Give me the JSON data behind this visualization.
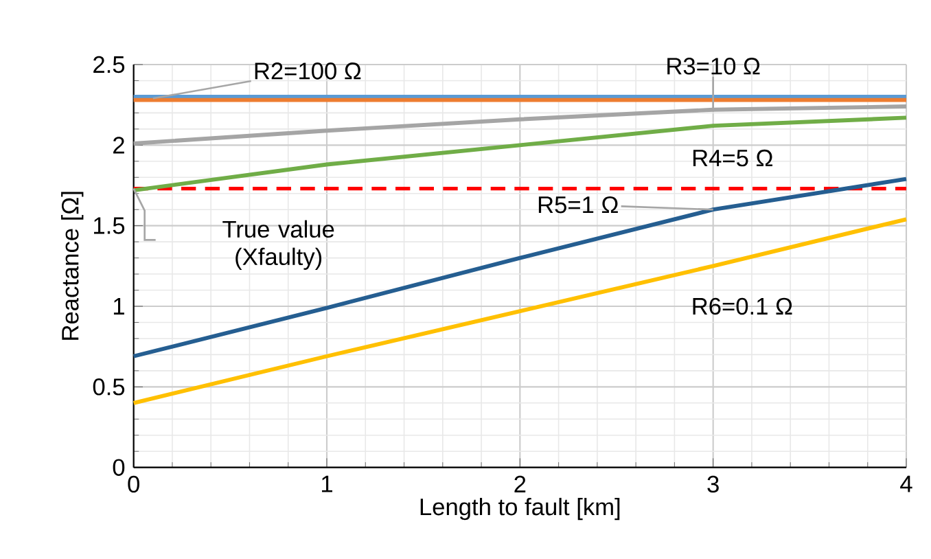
{
  "chart_data": {
    "type": "line",
    "xlabel": "Length to fault [km]",
    "ylabel": "Reactance [Ω]",
    "x": [
      0,
      1,
      2,
      3,
      4
    ],
    "series": [
      {
        "color": "#5b9bd5",
        "values": [
          2.3,
          2.3,
          2.3,
          2.3,
          2.3
        ]
      },
      {
        "color": "#ed7d31",
        "values": [
          2.28,
          2.28,
          2.28,
          2.28,
          2.28
        ]
      },
      {
        "color": "#a5a5a5",
        "values": [
          2.01,
          2.09,
          2.16,
          2.22,
          2.24
        ]
      },
      {
        "color": "#70ad47",
        "values": [
          1.72,
          1.88,
          2.0,
          2.12,
          2.17
        ]
      },
      {
        "color": "#255e91",
        "values": [
          0.69,
          0.99,
          1.3,
          1.6,
          1.79
        ]
      },
      {
        "color": "#ffc000",
        "values": [
          0.4,
          0.69,
          0.97,
          1.25,
          1.54
        ]
      }
    ],
    "xlim": [
      0,
      4
    ],
    "ylim": [
      0,
      2.5
    ],
    "xticks": [
      0,
      1,
      2,
      3,
      4
    ],
    "yticks": [
      0,
      0.5,
      1,
      1.5,
      2,
      2.5
    ],
    "grid": true,
    "ref_lines": [
      {
        "axis": "y",
        "value": 1.73,
        "label": "True value (Xfaulty)",
        "color": "#ff0000",
        "line_style": "dashed"
      }
    ],
    "annotations": [
      {
        "text": "R2=100 Ω",
        "x": 0.1,
        "y": 2.29
      },
      {
        "text": "R3=10 Ω",
        "x": 3,
        "y": 2.22
      },
      "R4=5 Ω",
      "R5=1 Ω",
      "R6=0.1 Ω"
    ]
  }
}
